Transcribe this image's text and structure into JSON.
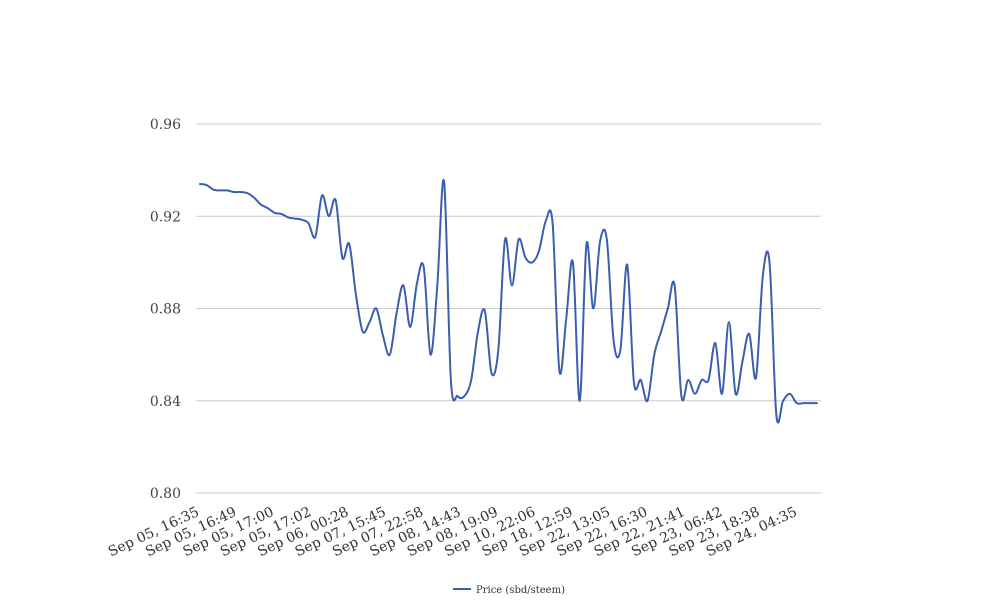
{
  "chart_data": {
    "type": "line",
    "title": "",
    "xlabel": "",
    "ylabel": "",
    "ylim": [
      0.8,
      0.96
    ],
    "yticks": [
      "0.80",
      "0.84",
      "0.88",
      "0.92",
      "0.96"
    ],
    "grid": true,
    "legend_position": "bottom",
    "x_tick_labels": [
      "Sep 05, 16:35",
      "Sep 05, 16:49",
      "Sep 05, 17:00",
      "Sep 05, 17:02",
      "Sep 06, 00:28",
      "Sep 07, 15:45",
      "Sep 07, 22:58",
      "Sep 08, 14:43",
      "Sep 08, 19:09",
      "Sep 10, 22:06",
      "Sep 18, 12:59",
      "Sep 22, 13:05",
      "Sep 22, 16:30",
      "Sep 22, 21:41",
      "Sep 23, 06:42",
      "Sep 23, 18:38",
      "Sep 24, 04:35"
    ],
    "series": [
      {
        "name": "Price (sbd/steem)",
        "color": "#3a5fb0",
        "values": [
          0.934,
          0.9335,
          0.9315,
          0.9312,
          0.9312,
          0.9305,
          0.9305,
          0.93,
          0.928,
          0.925,
          0.9235,
          0.9215,
          0.921,
          0.9195,
          0.919,
          0.9185,
          0.917,
          0.911,
          0.929,
          0.92,
          0.927,
          0.902,
          0.908,
          0.886,
          0.87,
          0.874,
          0.88,
          0.868,
          0.86,
          0.878,
          0.89,
          0.872,
          0.891,
          0.898,
          0.86,
          0.89,
          0.935,
          0.849,
          0.842,
          0.842,
          0.849,
          0.87,
          0.879,
          0.852,
          0.862,
          0.91,
          0.89,
          0.91,
          0.902,
          0.9,
          0.905,
          0.918,
          0.917,
          0.853,
          0.875,
          0.9,
          0.84,
          0.908,
          0.88,
          0.909,
          0.91,
          0.866,
          0.862,
          0.899,
          0.848,
          0.849,
          0.84,
          0.86,
          0.87,
          0.88,
          0.89,
          0.842,
          0.849,
          0.843,
          0.849,
          0.849,
          0.865,
          0.843,
          0.874,
          0.843,
          0.857,
          0.869,
          0.85,
          0.894,
          0.9,
          0.834,
          0.84,
          0.843,
          0.839,
          0.839,
          0.839,
          0.839
        ]
      }
    ]
  }
}
